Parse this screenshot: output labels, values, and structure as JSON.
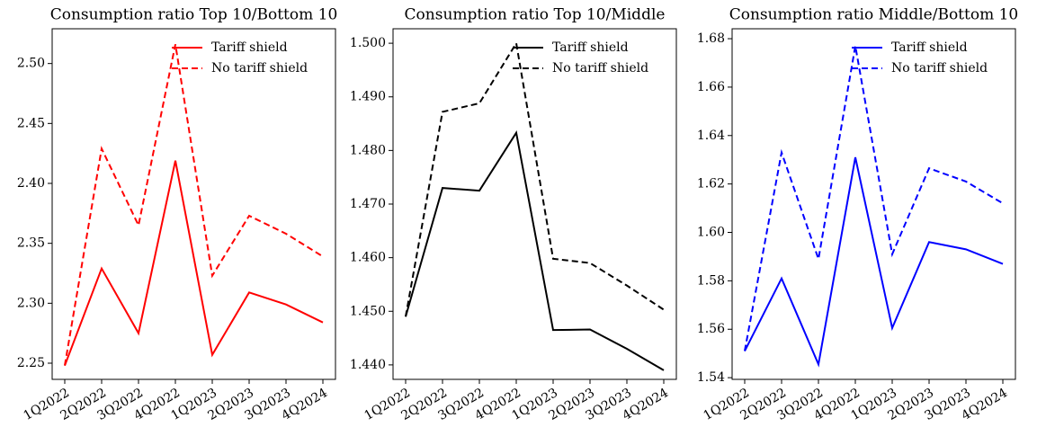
{
  "chart_data": [
    {
      "type": "line",
      "title": "Consumption ratio Top 10/Bottom 10",
      "categories": [
        "1Q2022",
        "2Q2022",
        "3Q2022",
        "4Q2022",
        "1Q2023",
        "2Q2023",
        "3Q2023",
        "4Q2024"
      ],
      "series": [
        {
          "name": "Tariff shield",
          "color": "#ff0000",
          "linestyle": "solid",
          "values": [
            2.248,
            2.329,
            2.275,
            2.419,
            2.257,
            2.309,
            2.299,
            2.284
          ]
        },
        {
          "name": "No tariff shield",
          "color": "#ff0000",
          "linestyle": "dashed",
          "values": [
            2.248,
            2.429,
            2.365,
            2.516,
            2.323,
            2.373,
            2.358,
            2.339
          ]
        }
      ],
      "ylim": [
        2.2365,
        2.529
      ],
      "yticks": [
        2.25,
        {
          "value": 2.3,
          "label": "2.30"
        },
        2.35,
        {
          "value": 2.4,
          "label": "2.40"
        },
        2.45,
        {
          "value": 2.5,
          "label": "2.50"
        }
      ],
      "legend": "upper right"
    },
    {
      "type": "line",
      "title": "Consumption ratio Top 10/Middle",
      "categories": [
        "1Q2022",
        "2Q2022",
        "3Q2022",
        "4Q2022",
        "1Q2023",
        "2Q2023",
        "3Q2023",
        "4Q2024"
      ],
      "series": [
        {
          "name": "Tariff shield",
          "color": "#000000",
          "linestyle": "solid",
          "values": [
            1.449,
            1.473,
            1.4725,
            1.4833,
            1.4465,
            1.4466,
            1.443,
            1.439
          ]
        },
        {
          "name": "No tariff shield",
          "color": "#000000",
          "linestyle": "dashed",
          "values": [
            1.449,
            1.4872,
            1.4888,
            1.5,
            1.4598,
            1.459,
            1.4548,
            1.4503
          ]
        }
      ],
      "ylim": [
        1.4373,
        1.5027
      ],
      "yticks": [
        {
          "value": 1.44,
          "label": "1.440"
        },
        {
          "value": 1.45,
          "label": "1.450"
        },
        {
          "value": 1.46,
          "label": "1.460"
        },
        {
          "value": 1.47,
          "label": "1.470"
        },
        {
          "value": 1.48,
          "label": "1.480"
        },
        {
          "value": 1.49,
          "label": "1.490"
        },
        {
          "value": 1.5,
          "label": "1.500"
        }
      ],
      "legend": "upper right"
    },
    {
      "type": "line",
      "title": "Consumption ratio Middle/Bottom 10",
      "categories": [
        "1Q2022",
        "2Q2022",
        "3Q2022",
        "4Q2022",
        "1Q2023",
        "2Q2023",
        "3Q2023",
        "4Q2024"
      ],
      "series": [
        {
          "name": "Tariff shield",
          "color": "#0000ff",
          "linestyle": "solid",
          "values": [
            1.551,
            1.581,
            1.5455,
            1.631,
            1.5605,
            1.596,
            1.593,
            1.587
          ]
        },
        {
          "name": "No tariff shield",
          "color": "#0000ff",
          "linestyle": "dashed",
          "values": [
            1.551,
            1.633,
            1.589,
            1.677,
            1.591,
            1.6265,
            1.621,
            1.612
          ]
        }
      ],
      "ylim": [
        1.5393,
        1.6841
      ],
      "yticks": [
        1.54,
        1.56,
        1.58,
        {
          "value": 1.6,
          "label": "1.60"
        },
        1.62,
        1.64,
        1.66,
        1.68
      ],
      "legend": "upper right"
    }
  ]
}
